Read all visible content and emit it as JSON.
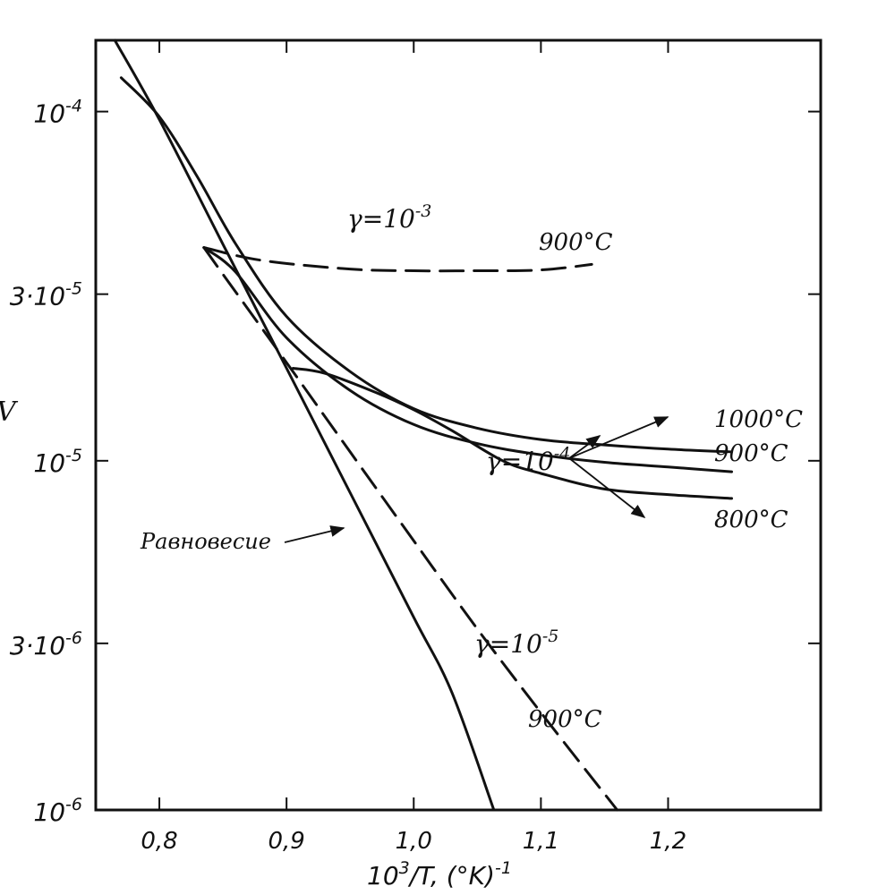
{
  "chart_data": {
    "type": "line",
    "title": "",
    "xlabel": "10³/T, (°K)⁻¹",
    "ylabel": "V",
    "y_scale": "log",
    "xlim": [
      0.75,
      1.32
    ],
    "ylim": [
      1e-06,
      0.00016
    ],
    "grid": false,
    "x_ticks": [
      {
        "v": 0.8,
        "label": "0,8"
      },
      {
        "v": 0.9,
        "label": "0,9"
      },
      {
        "v": 1.0,
        "label": "1,0"
      },
      {
        "v": 1.1,
        "label": "1,1"
      },
      {
        "v": 1.2,
        "label": "1,2"
      }
    ],
    "y_ticks": [
      {
        "v": 0.0001,
        "base": "10",
        "exp": "-4"
      },
      {
        "v": 3e-05,
        "base": "3·10",
        "exp": "-5"
      },
      {
        "v": 1e-05,
        "base": "10",
        "exp": "-5"
      },
      {
        "v": 3e-06,
        "base": "3·10",
        "exp": "-6"
      },
      {
        "v": 1e-06,
        "base": "10",
        "exp": "-6"
      }
    ],
    "series": [
      {
        "name": "Равновесие",
        "dashed": false,
        "x": [
          0.765,
          0.8,
          0.85,
          0.9,
          0.95,
          1.0,
          1.03,
          1.063
        ],
        "y": [
          0.00016,
          9.48e-05,
          4.17e-05,
          1.84e-05,
          8.1e-06,
          3.56e-06,
          2.17e-06,
          1e-06
        ]
      },
      {
        "name": "1000°C",
        "dashed": false,
        "x": [
          0.77,
          0.8,
          0.83,
          0.86,
          0.9,
          0.95,
          1.0,
          1.05,
          1.1,
          1.15,
          1.2,
          1.25
        ],
        "y": [
          0.000125,
          9.66e-05,
          6.49e-05,
          4.18e-05,
          2.59e-05,
          1.8e-05,
          1.41e-05,
          1.24e-05,
          1.15e-05,
          1.11e-05,
          1.08e-05,
          1.06e-05
        ]
      },
      {
        "name": "900°C",
        "dashed": false,
        "x": [
          0.835,
          0.86,
          0.9,
          0.95,
          1.0,
          1.05,
          1.1,
          1.15,
          1.2,
          1.25
        ],
        "y": [
          4.08e-05,
          3.47e-05,
          2.25e-05,
          1.59e-05,
          1.27e-05,
          1.12e-05,
          1.04e-05,
          9.9e-06,
          9.6e-06,
          9.3e-06
        ]
      },
      {
        "name": "800°C",
        "dashed": false,
        "x": [
          0.905,
          0.93,
          0.97,
          1.0,
          1.03,
          1.07,
          1.1,
          1.15,
          1.2,
          1.25
        ],
        "y": [
          1.84e-05,
          1.78e-05,
          1.57e-05,
          1.4e-05,
          1.22e-05,
          1e-05,
          9.2e-06,
          8.3e-06,
          8e-06,
          7.8e-06
        ]
      },
      {
        "name": "γ=10⁻³ 900°C",
        "dashed": true,
        "x": [
          0.835,
          0.88,
          0.95,
          1.0,
          1.05,
          1.1,
          1.14
        ],
        "y": [
          4.08e-05,
          3.75e-05,
          3.54e-05,
          3.5e-05,
          3.5e-05,
          3.52e-05,
          3.65e-05
        ]
      },
      {
        "name": "γ=10⁻⁵ 900°C",
        "dashed": true,
        "x": [
          0.835,
          0.85,
          0.9,
          0.95,
          1.0,
          1.05,
          1.1,
          1.16
        ],
        "y": [
          4.08e-05,
          3.42e-05,
          1.91e-05,
          1.06e-05,
          5.9e-06,
          3.3e-06,
          1.9e-06,
          1e-06
        ]
      }
    ],
    "annotations": [
      {
        "text": "γ=10",
        "exp": "-3"
      },
      {
        "text": "900°C"
      },
      {
        "text": "1000°C"
      },
      {
        "text": "900°C"
      },
      {
        "text": "800°C"
      },
      {
        "text": "γ=10",
        "exp": "-4"
      },
      {
        "text": "Равновесие"
      },
      {
        "text": "γ=10",
        "exp": "-5"
      },
      {
        "text": "900°C"
      }
    ]
  }
}
